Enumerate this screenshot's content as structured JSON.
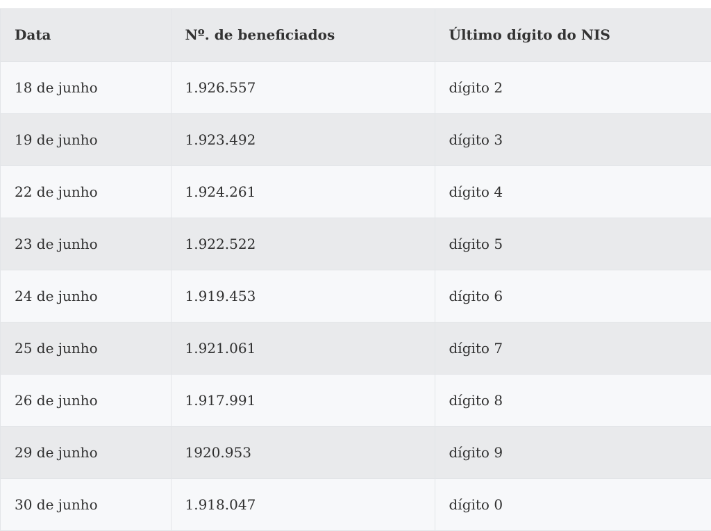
{
  "table": {
    "headers": [
      "Data",
      "Nº. de beneficiados",
      "Último dígito do NIS"
    ],
    "rows": [
      [
        "18 de junho",
        "1.926.557",
        "dígito 2"
      ],
      [
        "19 de junho",
        "1.923.492",
        "dígito 3"
      ],
      [
        "22 de junho",
        "1.924.261",
        "dígito 4"
      ],
      [
        "23 de junho",
        "1.922.522",
        "dígito 5"
      ],
      [
        "24 de junho",
        "1.919.453",
        "dígito 6"
      ],
      [
        "25 de junho",
        "1.921.061",
        "dígito 7"
      ],
      [
        "26 de junho",
        "1.917.991",
        "dígito 8"
      ],
      [
        "29 de junho",
        "1920.953",
        "dígito 9"
      ],
      [
        "30 de junho",
        "1.918.047",
        "dígito 0"
      ]
    ]
  }
}
